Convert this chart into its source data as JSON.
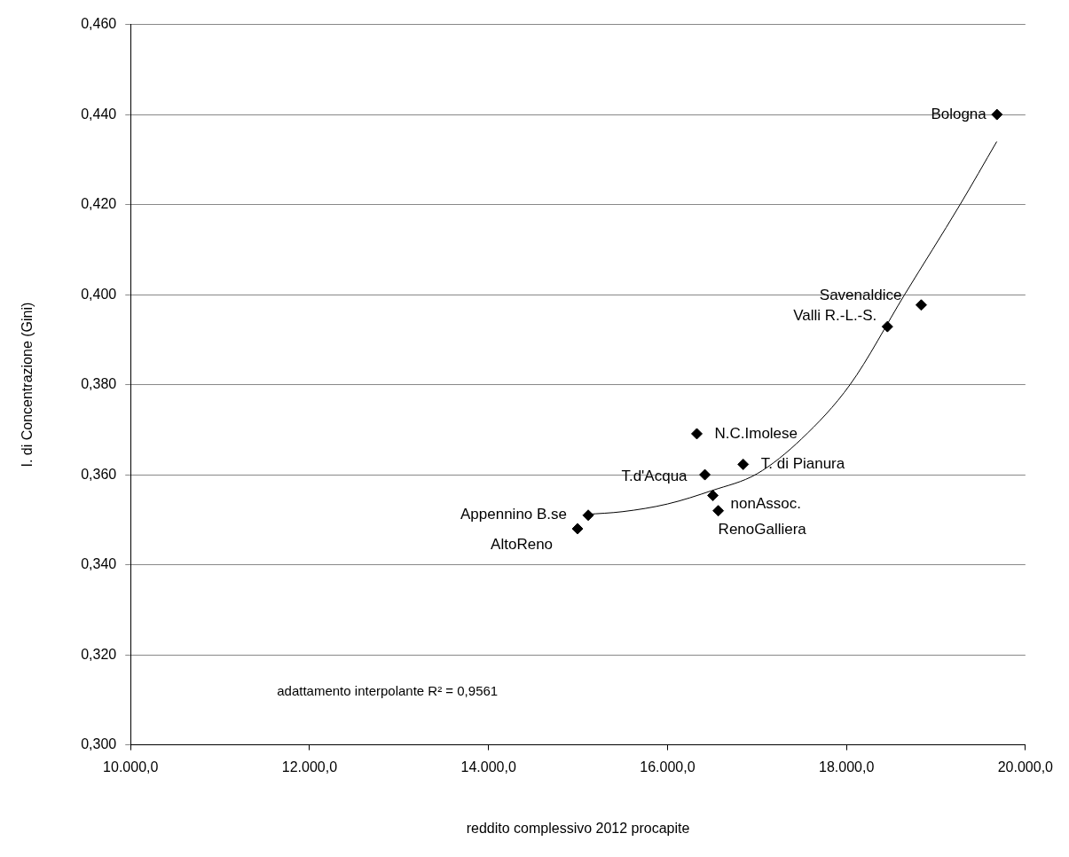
{
  "chart_data": {
    "type": "scatter",
    "xlabel": "reddito complessivo 2012 procapite",
    "ylabel": "I. di Concentrazione (Gini)",
    "series": [
      {
        "color": "#000000",
        "marker": "diamond",
        "x": [
          19682,
          18836,
          18458,
          16328,
          16418,
          16846,
          16507,
          16567,
          15114,
          14995
        ],
        "values": [
          0.44,
          0.3977,
          0.3929,
          0.3691,
          0.36,
          0.3623,
          0.3554,
          0.352,
          0.351,
          0.348
        ]
      },
      {
        "type": "line",
        "color": "#000000",
        "marker": "none",
        "x": [
          15100,
          15500,
          16000,
          16500,
          17000,
          17500,
          18040,
          18650,
          19270,
          19680
        ],
        "values": [
          0.3512,
          0.3518,
          0.3535,
          0.3565,
          0.3602,
          0.368,
          0.38,
          0.4,
          0.42,
          0.434
        ]
      }
    ],
    "xlim": [
      10000,
      20000
    ],
    "xticks": [
      {
        "value": 10000,
        "label": "10.000,0"
      },
      {
        "value": 12000,
        "label": "12.000,0"
      },
      {
        "value": 14000,
        "label": "14.000,0"
      },
      {
        "value": 16000,
        "label": "16.000,0"
      },
      {
        "value": 18000,
        "label": "18.000,0"
      },
      {
        "value": 20000,
        "label": "20.000,0"
      }
    ],
    "ylim": [
      0.3,
      0.46
    ],
    "yticks": [
      {
        "value": 0.3,
        "label": "0,300"
      },
      {
        "value": 0.32,
        "label": "0,320"
      },
      {
        "value": 0.34,
        "label": "0,340"
      },
      {
        "value": 0.36,
        "label": "0,360"
      },
      {
        "value": 0.38,
        "label": "0,380"
      },
      {
        "value": 0.4,
        "label": "0,400"
      },
      {
        "value": 0.42,
        "label": "0,420"
      },
      {
        "value": 0.44,
        "label": "0,440"
      },
      {
        "value": 0.46,
        "label": "0,460"
      }
    ],
    "grid": "y",
    "legend": false,
    "annotations": [
      {
        "text": "Bologna",
        "x": 19682,
        "y": 0.44
      },
      {
        "text": "Savenaldice",
        "x": 18836,
        "y": 0.3977
      },
      {
        "text": "Valli R.-L.-S.",
        "x": 18458,
        "y": 0.3929
      },
      {
        "text": "N.C.Imolese",
        "x": 16328,
        "y": 0.3691
      },
      {
        "text": "T.d'Acqua",
        "x": 16418,
        "y": 0.36
      },
      {
        "text": "T. di Pianura",
        "x": 16846,
        "y": 0.3623
      },
      {
        "text": "nonAssoc.",
        "x": 16507,
        "y": 0.3554
      },
      {
        "text": "RenoGalliera",
        "x": 16567,
        "y": 0.352
      },
      {
        "text": "Appennino B.se",
        "x": 15114,
        "y": 0.351
      },
      {
        "text": "AltoReno",
        "x": 14995,
        "y": 0.348
      },
      "adattamento interpolante R² = 0,9561"
    ]
  }
}
